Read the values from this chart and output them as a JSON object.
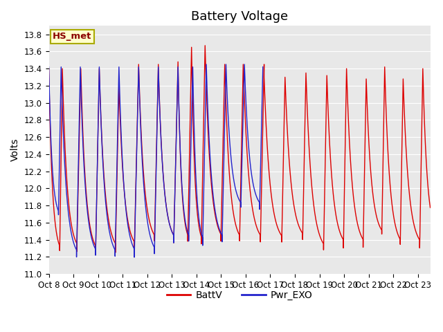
{
  "title": "Battery Voltage",
  "ylabel": "Volts",
  "ylim": [
    11.0,
    13.9
  ],
  "yticks": [
    11.0,
    11.2,
    11.4,
    11.6,
    11.8,
    12.0,
    12.2,
    12.4,
    12.6,
    12.8,
    13.0,
    13.2,
    13.4,
    13.6,
    13.8
  ],
  "x_tick_labels": [
    "Oct 8",
    "Oct 9",
    "Oct 10",
    "Oct 11",
    "Oct 12",
    "Oct 13",
    "Oct 14",
    "Oct 15",
    "Oct 16",
    "Oct 17",
    "Oct 18",
    "Oct 19",
    "Oct 20",
    "Oct 21",
    "Oct 22",
    "Oct 23"
  ],
  "line1_color": "#dd0000",
  "line2_color": "#2222cc",
  "line1_label": "BattV",
  "line2_label": "Pwr_EXO",
  "legend_label": "HS_met",
  "legend_label_color": "#8B0000",
  "legend_bg": "#ffffcc",
  "legend_border": "#aaaa00",
  "plot_bg": "#e8e8e8",
  "title_fontsize": 13,
  "axis_fontsize": 10,
  "tick_fontsize": 8.5,
  "n_days": 16
}
